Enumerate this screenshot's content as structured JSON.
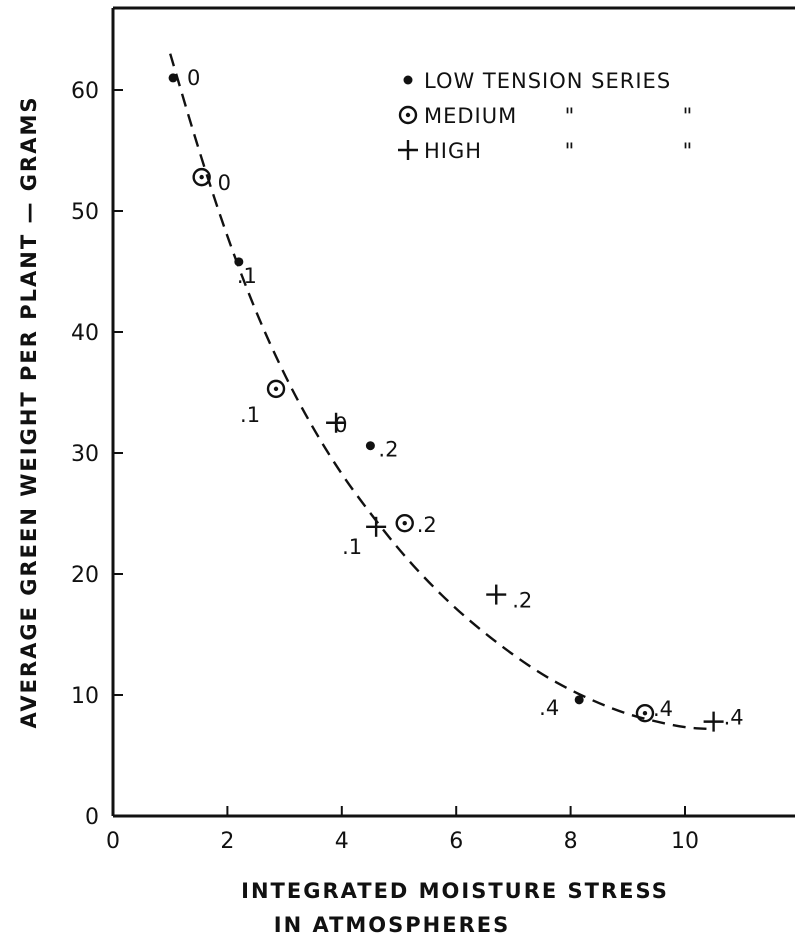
{
  "chart_data": {
    "type": "scatter",
    "xlabel_line1": "INTEGRATED MOISTURE STRESS",
    "xlabel_line2": "IN ATMOSPHERES",
    "ylabel": "AVERAGE GREEN WEIGHT PER PLANT — GRAMS",
    "xlim": [
      0,
      12
    ],
    "ylim": [
      0,
      65
    ],
    "x_ticks": [
      0,
      2,
      4,
      6,
      8,
      10
    ],
    "y_ticks": [
      0,
      10,
      20,
      30,
      40,
      50,
      60
    ],
    "x_tick_labels": [
      "0",
      "2",
      "4",
      "6",
      "8",
      "10"
    ],
    "y_tick_labels": [
      "0",
      "10",
      "20",
      "30",
      "40",
      "50",
      "60"
    ],
    "grid": false,
    "legend_position": "top-right",
    "legend": [
      {
        "marker": "dot",
        "text": "LOW TENSION SERIES"
      },
      {
        "marker": "circle-dot",
        "text": "MEDIUM",
        "ditto": [
          "\"",
          "\""
        ]
      },
      {
        "marker": "plus",
        "text": "HIGH",
        "ditto": [
          "\"",
          "\""
        ]
      }
    ],
    "series": [
      {
        "name": "LOW TENSION SERIES",
        "marker": "dot",
        "points": [
          {
            "x": 1.05,
            "y": 61.0,
            "label": "0"
          },
          {
            "x": 2.2,
            "y": 45.8,
            "label": ".1"
          },
          {
            "x": 4.5,
            "y": 30.6,
            "label": ".2"
          },
          {
            "x": 8.15,
            "y": 9.6,
            "label": ".4"
          }
        ]
      },
      {
        "name": "MEDIUM",
        "marker": "circle-dot",
        "points": [
          {
            "x": 1.55,
            "y": 52.8,
            "label": "0"
          },
          {
            "x": 2.85,
            "y": 35.3,
            "label": ".1"
          },
          {
            "x": 5.1,
            "y": 24.2,
            "label": ".2"
          },
          {
            "x": 9.3,
            "y": 8.5,
            "label": ".4"
          }
        ]
      },
      {
        "name": "HIGH",
        "marker": "plus",
        "points": [
          {
            "x": 3.9,
            "y": 32.5,
            "label": "0"
          },
          {
            "x": 4.6,
            "y": 23.9,
            "label": ".1"
          },
          {
            "x": 6.7,
            "y": 18.3,
            "label": ".2"
          },
          {
            "x": 10.5,
            "y": 7.8,
            "label": ".4"
          }
        ]
      }
    ],
    "fit_curve": {
      "style": "dashed",
      "points": [
        [
          1.0,
          63.0
        ],
        [
          1.5,
          55.0
        ],
        [
          2.0,
          47.8
        ],
        [
          2.5,
          41.6
        ],
        [
          3.0,
          36.4
        ],
        [
          3.5,
          32.0
        ],
        [
          4.0,
          28.2
        ],
        [
          4.5,
          25.0
        ],
        [
          5.0,
          22.0
        ],
        [
          5.5,
          19.4
        ],
        [
          6.0,
          17.1
        ],
        [
          6.5,
          15.1
        ],
        [
          7.0,
          13.3
        ],
        [
          7.5,
          11.7
        ],
        [
          8.0,
          10.4
        ],
        [
          8.5,
          9.3
        ],
        [
          9.0,
          8.4
        ],
        [
          9.5,
          7.8
        ],
        [
          10.0,
          7.3
        ],
        [
          10.4,
          7.2
        ]
      ]
    }
  }
}
